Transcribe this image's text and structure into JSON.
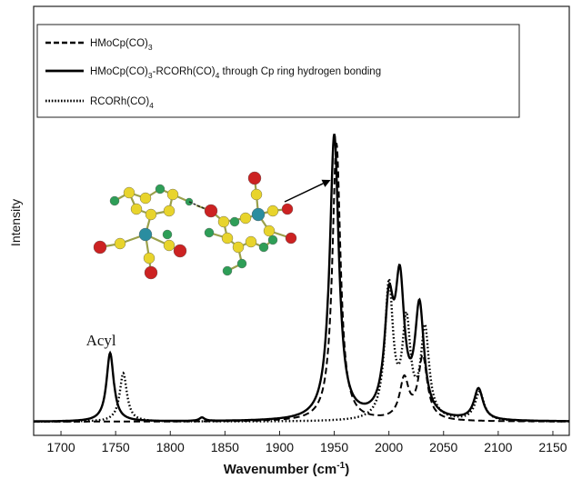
{
  "chart_data": {
    "type": "line",
    "xlabel": "Wavenumber (cm",
    "xlabel_sup": "-1",
    "xlabel_close": ")",
    "ylabel": "Intensity",
    "xlim": [
      1675,
      2165
    ],
    "ylim": [
      0,
      1.0
    ],
    "xticks": [
      1700,
      1750,
      1800,
      1850,
      1900,
      1950,
      2000,
      2050,
      2100,
      2150
    ],
    "grid": false,
    "legend_position": "top",
    "legend": [
      {
        "style": "dashed",
        "parts": [
          [
            "HMoCp(CO)",
            false
          ],
          [
            "3",
            true
          ]
        ]
      },
      {
        "style": "solid",
        "parts": [
          [
            "HMoCp(CO)",
            false
          ],
          [
            "3",
            true
          ],
          [
            "-RCORh(CO)",
            false
          ],
          [
            "4",
            true
          ],
          [
            " through Cp ring hydrogen bonding",
            false
          ]
        ]
      },
      {
        "style": "dotted",
        "parts": [
          [
            "RCORh(CO)",
            false
          ],
          [
            "4",
            true
          ]
        ]
      }
    ],
    "series": [
      {
        "style": "dashed",
        "peaks": [
          {
            "center": 1952,
            "height": 0.975,
            "width": 4.5
          },
          {
            "center": 2014,
            "height": 0.14,
            "width": 5
          },
          {
            "center": 2031,
            "height": 0.22,
            "width": 5
          }
        ]
      },
      {
        "style": "solid",
        "peaks": [
          {
            "center": 1745,
            "height": 0.24,
            "width": 4
          },
          {
            "center": 1829,
            "height": 0.012,
            "width": 3
          },
          {
            "center": 1950,
            "height": 1.0,
            "width": 5
          },
          {
            "center": 2000,
            "height": 0.37,
            "width": 5
          },
          {
            "center": 2010,
            "height": 0.44,
            "width": 5
          },
          {
            "center": 2028,
            "height": 0.38,
            "width": 5
          },
          {
            "center": 2082,
            "height": 0.11,
            "width": 5
          }
        ]
      },
      {
        "style": "dotted",
        "peaks": [
          {
            "center": 1757,
            "height": 0.17,
            "width": 4
          },
          {
            "center": 2000,
            "height": 0.47,
            "width": 4.5
          },
          {
            "center": 2016,
            "height": 0.33,
            "width": 4.5
          },
          {
            "center": 2033,
            "height": 0.31,
            "width": 4.5
          },
          {
            "center": 2083,
            "height": 0.1,
            "width": 5
          }
        ]
      }
    ],
    "annotations": [
      {
        "text": "Acyl",
        "x": 1745,
        "y": 0.28
      }
    ],
    "arrow_target": {
      "x": 1950,
      "y": 0.86
    }
  }
}
